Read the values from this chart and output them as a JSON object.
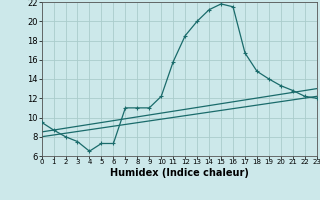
{
  "background_color": "#cce8ea",
  "grid_color": "#aacccc",
  "line_color": "#1a6b6b",
  "marker_color": "#1a6b6b",
  "line1_x": [
    0,
    1,
    2,
    3,
    4,
    5,
    6,
    7,
    8,
    9,
    10,
    11,
    12,
    13,
    14,
    15,
    16,
    17,
    18,
    19,
    20,
    21,
    22,
    23
  ],
  "line1_y": [
    9.5,
    8.7,
    8.0,
    7.5,
    6.5,
    7.3,
    7.3,
    11.0,
    11.0,
    11.0,
    12.2,
    15.8,
    18.5,
    20.0,
    21.2,
    21.8,
    21.5,
    16.7,
    14.8,
    14.0,
    13.3,
    12.8,
    12.2,
    12.0
  ],
  "line2_x": [
    0,
    23
  ],
  "line2_y": [
    8.5,
    13.0
  ],
  "line3_x": [
    0,
    23
  ],
  "line3_y": [
    8.0,
    12.2
  ],
  "xlabel": "Humidex (Indice chaleur)",
  "xlim": [
    0,
    23
  ],
  "ylim": [
    6,
    22
  ],
  "xticks": [
    0,
    1,
    2,
    3,
    4,
    5,
    6,
    7,
    8,
    9,
    10,
    11,
    12,
    13,
    14,
    15,
    16,
    17,
    18,
    19,
    20,
    21,
    22,
    23
  ],
  "yticks": [
    6,
    8,
    10,
    12,
    14,
    16,
    18,
    20,
    22
  ]
}
